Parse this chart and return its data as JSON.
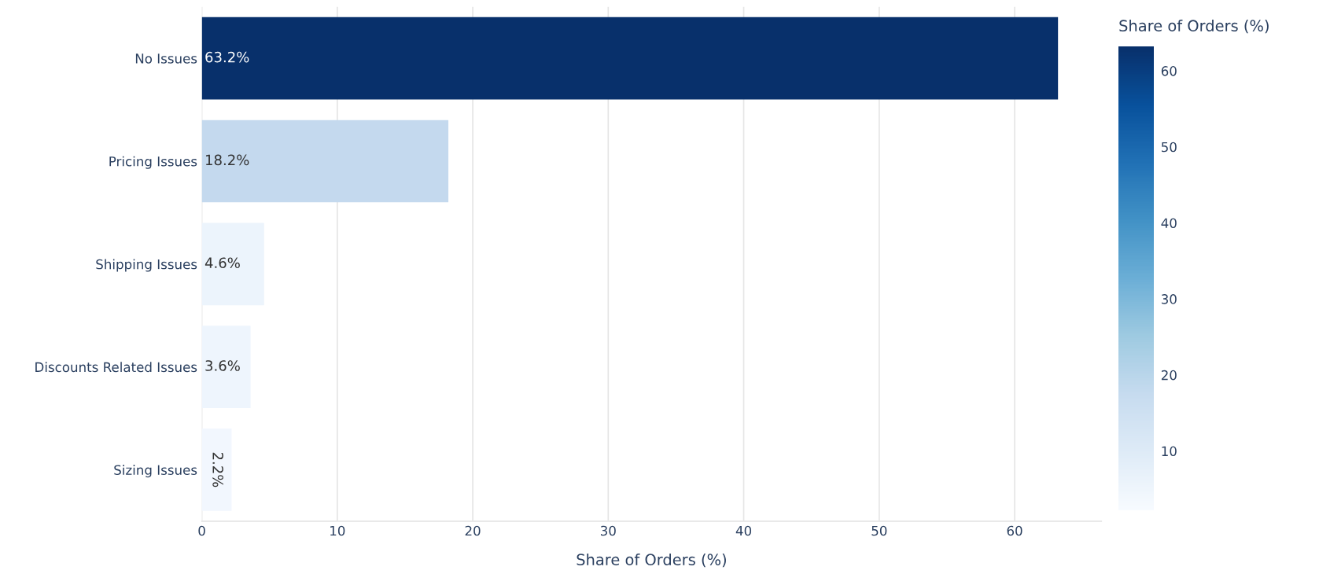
{
  "chart_data": {
    "type": "bar",
    "orientation": "horizontal",
    "categories": [
      "No Issues",
      "Pricing Issues",
      "Shipping Issues",
      "Discounts Related Issues",
      "Sizing Issues"
    ],
    "values": [
      63.2,
      18.2,
      4.6,
      3.6,
      2.2
    ],
    "colors": [
      "#08306b",
      "#c4d9ee",
      "#ecf4fc",
      "#eef5fd",
      "#f2f7fe"
    ],
    "value_labels": [
      "63.2%",
      "18.2%",
      "4.6%",
      "3.6%",
      "2.2%"
    ],
    "xlabel": "Share of Orders (%)",
    "xlim": [
      0,
      66.4
    ],
    "xticks": [
      0,
      10,
      20,
      30,
      40,
      50,
      60
    ],
    "grid": "x",
    "clabel": "Share of Orders (%)",
    "clim": [
      2.2,
      63.2
    ],
    "cticks": [
      10,
      20,
      30,
      40,
      50,
      60
    ]
  }
}
